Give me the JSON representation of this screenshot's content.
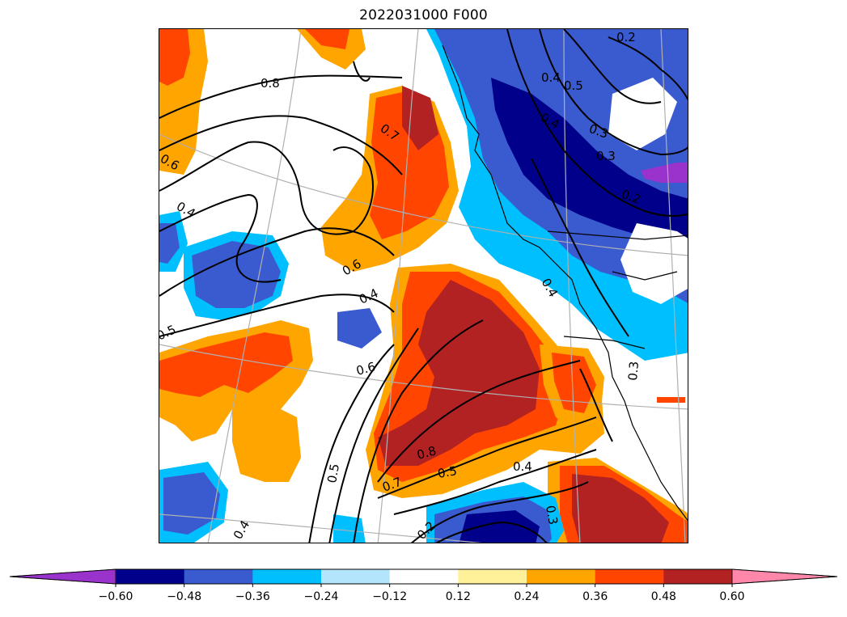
{
  "title": "2022031000 F000",
  "colors": {
    "below_min": "#9933cc",
    "bins": [
      "#00008b",
      "#3a5bd0",
      "#00bfff",
      "#b3e5fc",
      "#ffffff",
      "#fff09a",
      "#ffa500",
      "#ff4500",
      "#b22222"
    ],
    "above_max": "#ff88aa",
    "contour": "#000000",
    "gridline": "#b0b0b0",
    "coastline": "#000000"
  },
  "colorbar": {
    "levels": [
      "−0.60",
      "−0.48",
      "−0.36",
      "−0.24",
      "−0.12",
      "0.12",
      "0.24",
      "0.36",
      "0.48",
      "0.60"
    ],
    "extend": "both"
  },
  "contour_labels": [
    "0.8",
    "0.7",
    "0.6",
    "0.4",
    "0.6",
    "0.4",
    "0.5",
    "0.6",
    "0.8",
    "0.5",
    "0.4",
    "0.7",
    "0.5",
    "0.4",
    "0.2",
    "0.3",
    "0.4",
    "0.5",
    "0.4",
    "0.3",
    "0.2",
    "0.3",
    "0.4",
    "0.2",
    "0.3"
  ]
}
